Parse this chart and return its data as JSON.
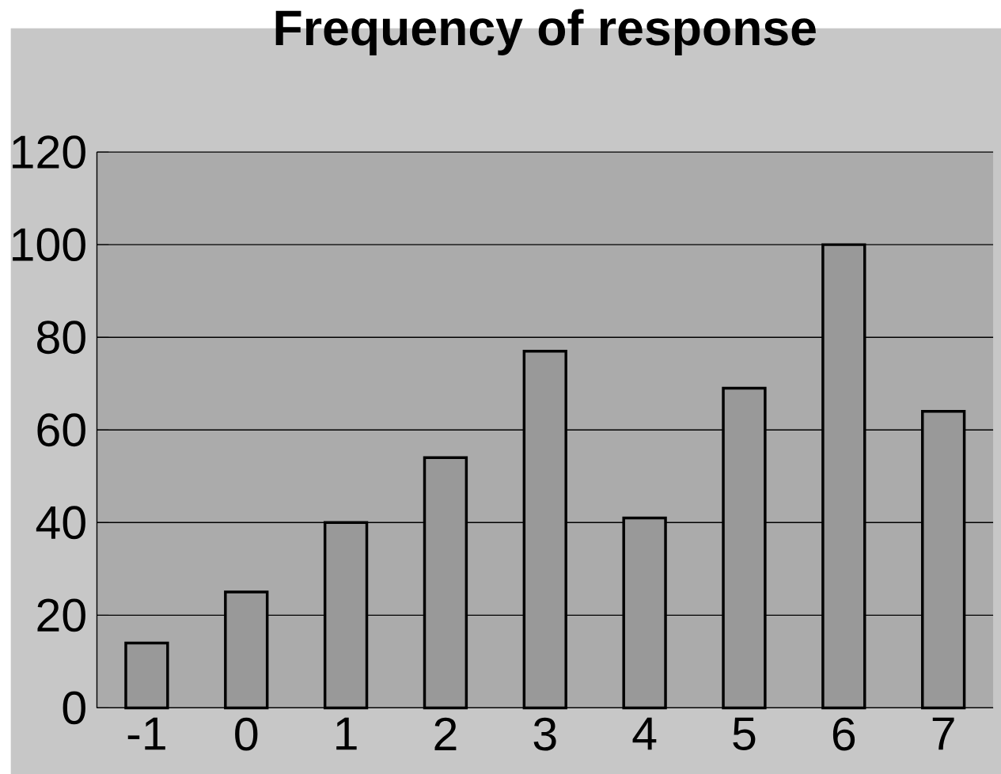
{
  "chart_data": {
    "type": "bar",
    "title": "Frequency of response",
    "categories": [
      "-1",
      "0",
      "1",
      "2",
      "3",
      "4",
      "5",
      "6",
      "7"
    ],
    "values": [
      14,
      25,
      40,
      54,
      77,
      41,
      69,
      100,
      64
    ],
    "color": "#999999",
    "ylim": [
      0,
      120
    ],
    "yticks": [
      0,
      20,
      40,
      60,
      80,
      100,
      120
    ],
    "grid": "y"
  }
}
